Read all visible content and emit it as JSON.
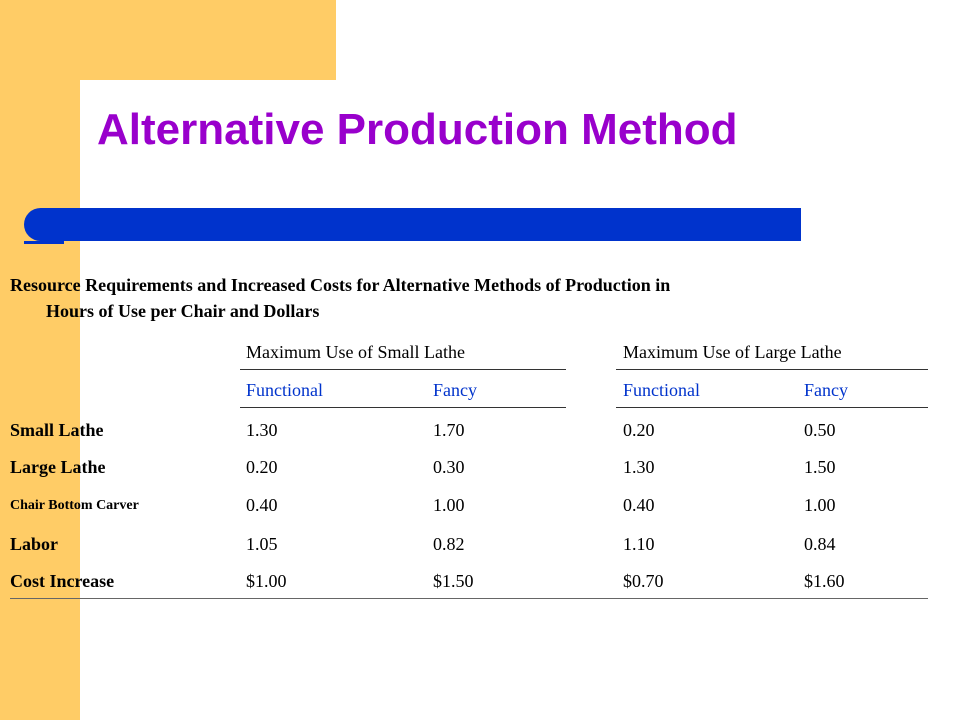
{
  "slide": {
    "title": "Alternative Production Method",
    "caption_line1": "Resource Requirements and Increased Costs for Alternative Methods of Production in",
    "caption_line2": "Hours of Use per Chair and Dollars"
  },
  "colors": {
    "accent": "#ffcc66",
    "title": "#9900cc",
    "bar": "#0033cc",
    "subheader": "#0033cc"
  },
  "table": {
    "group_headers": [
      "Maximum Use of Small Lathe",
      "Maximum Use of Large Lathe"
    ],
    "sub_headers": [
      "Functional",
      "Fancy",
      "Functional",
      "Fancy"
    ],
    "rows": [
      {
        "label": "Small Lathe",
        "values": [
          "1.30",
          "1.70",
          "0.20",
          "0.50"
        ]
      },
      {
        "label": "Large Lathe",
        "values": [
          "0.20",
          "0.30",
          "1.30",
          "1.50"
        ]
      },
      {
        "label": "Chair Bottom Carver",
        "values": [
          "0.40",
          "1.00",
          "0.40",
          "1.00"
        ]
      },
      {
        "label": "Labor",
        "values": [
          "1.05",
          "0.82",
          "1.10",
          "0.84"
        ]
      },
      {
        "label": "Cost Increase",
        "values": [
          "$1.00",
          "$1.50",
          "$0.70",
          "$1.60"
        ]
      }
    ]
  }
}
